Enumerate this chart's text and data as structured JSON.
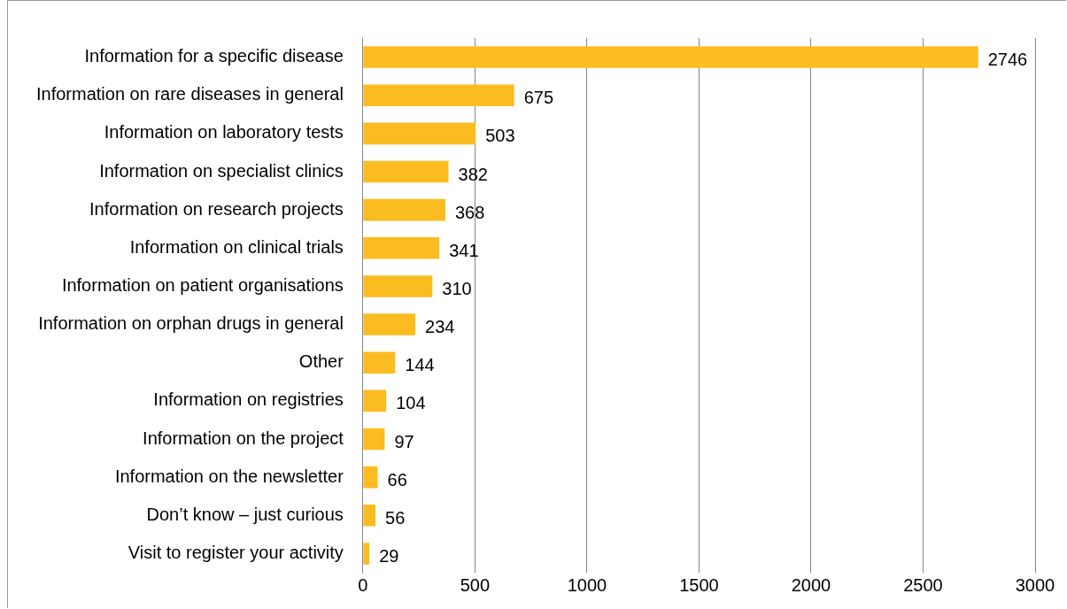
{
  "chart_data": {
    "type": "bar",
    "orientation": "horizontal",
    "categories": [
      "Information for a specific disease",
      "Information on rare diseases in general",
      "Information on laboratory tests",
      "Information on specialist clinics",
      "Information on research projects",
      "Information on clinical trials",
      "Information on patient organisations",
      "Information on orphan drugs in general",
      "Other",
      "Information on registries",
      "Information on the project",
      "Information on the newsletter",
      "Don’t know – just curious",
      "Visit to register your activity"
    ],
    "values": [
      2746,
      675,
      503,
      382,
      368,
      341,
      310,
      234,
      144,
      104,
      97,
      66,
      56,
      29
    ],
    "color": "#fbbc22",
    "xlim": [
      0,
      3000
    ],
    "xticks": [
      0,
      500,
      1000,
      1500,
      2000,
      2500,
      3000
    ],
    "grid": "x",
    "data_labels": true,
    "legend": false
  }
}
